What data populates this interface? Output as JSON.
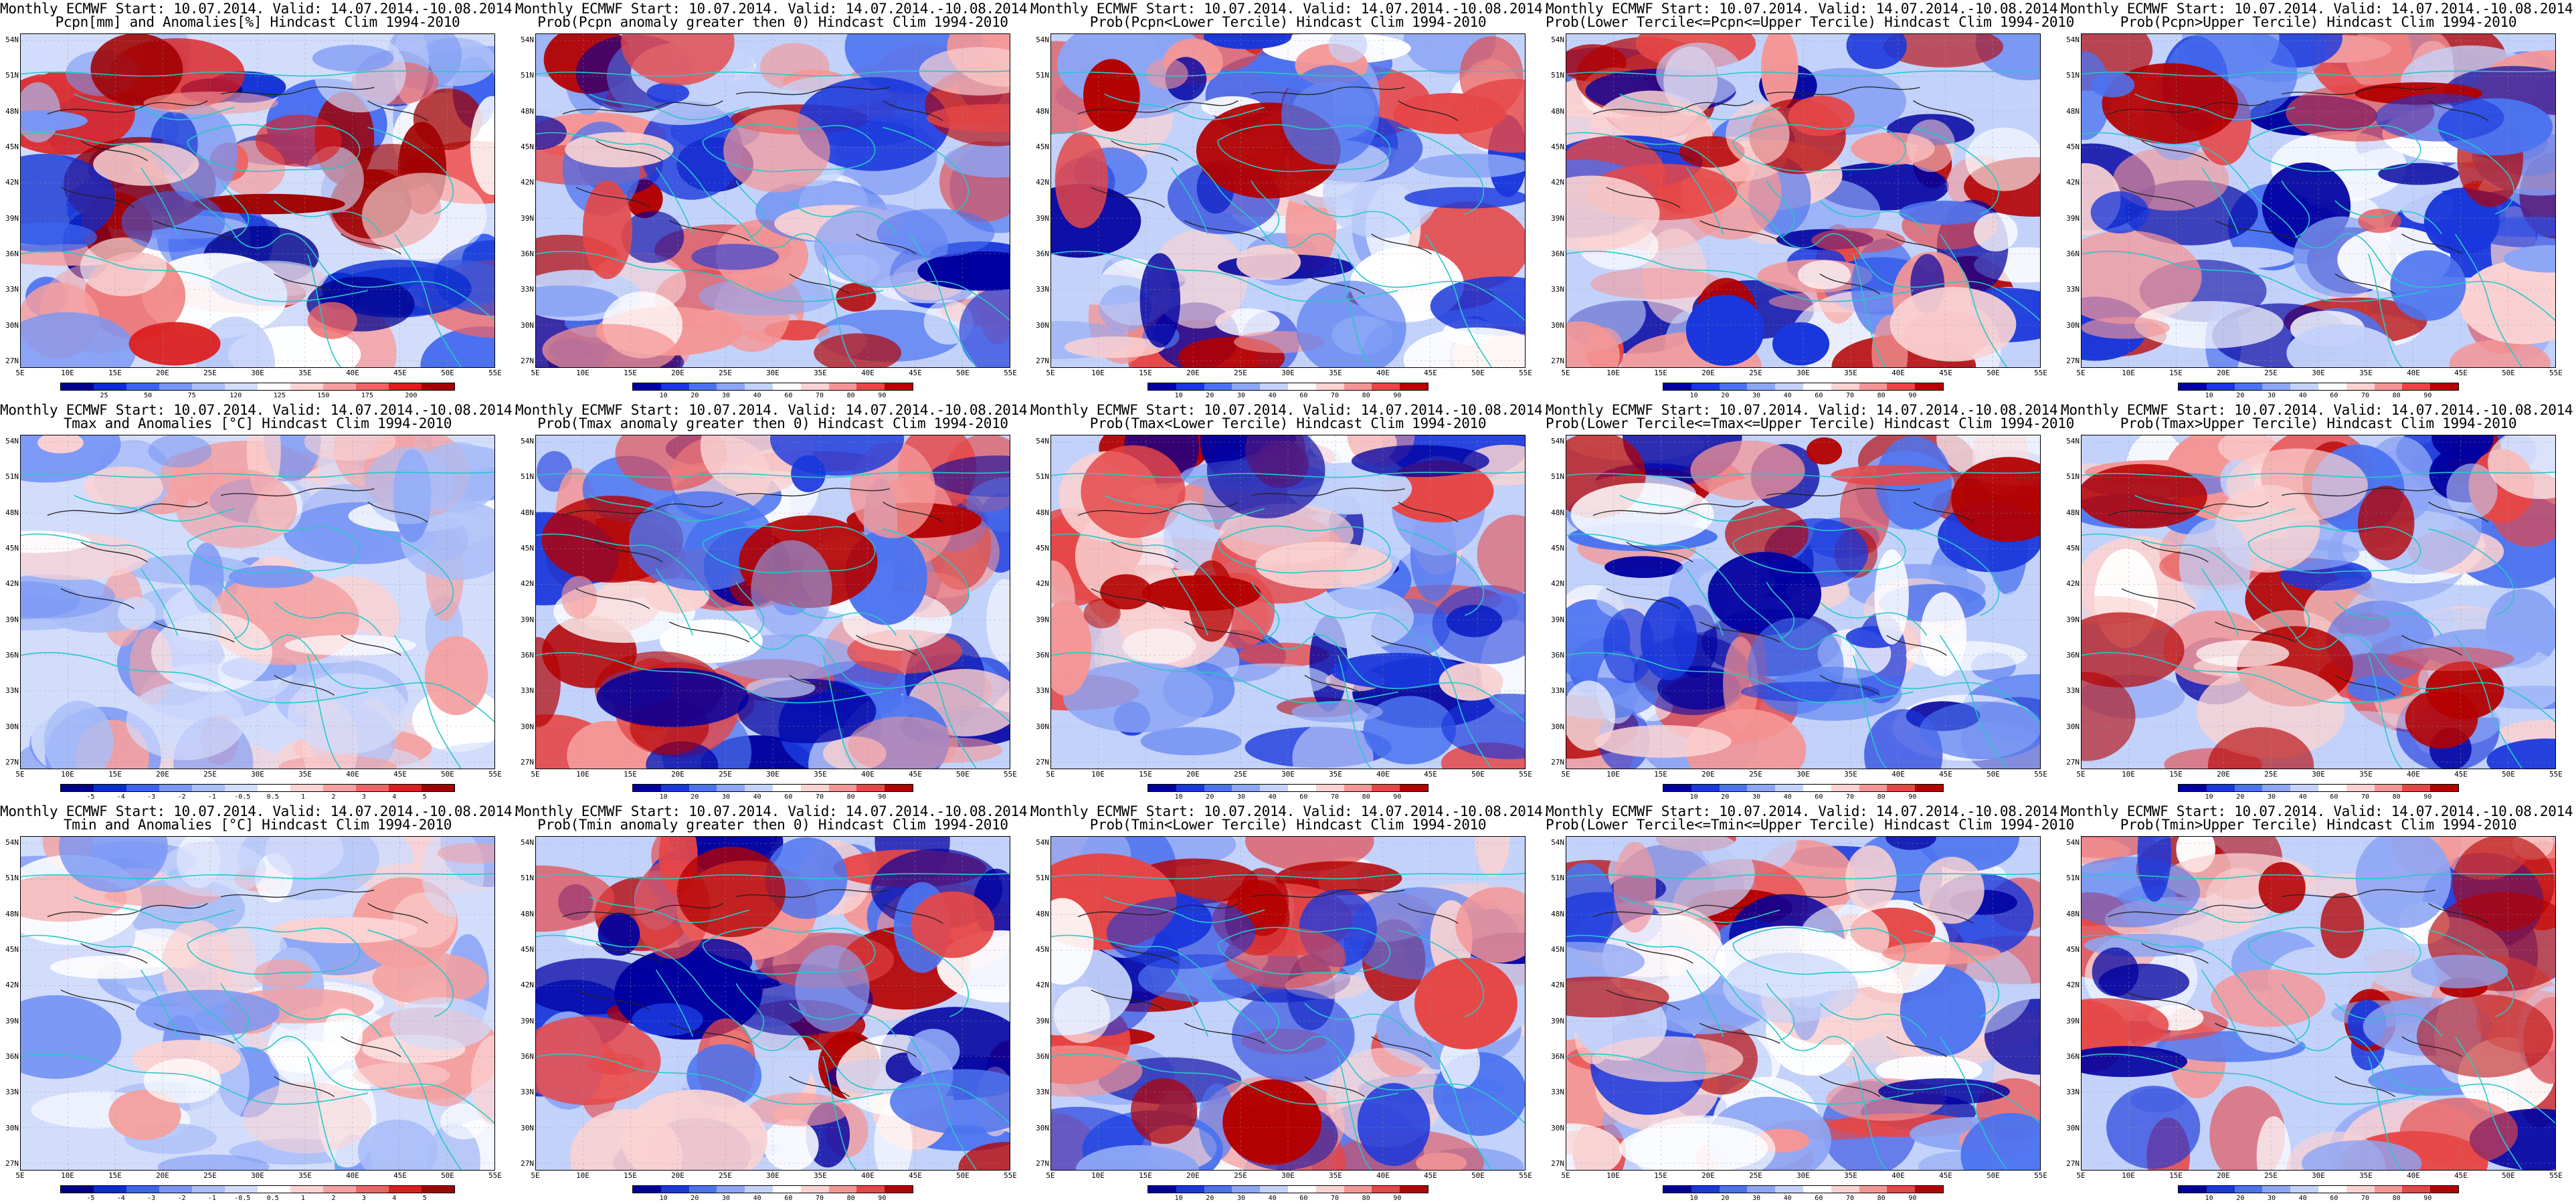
{
  "title_line1": "Monthly ECMWF Start: 10.07.2014. Valid: 14.07.2014.-10.08.2014.",
  "panels": [
    {
      "line2": "Pcpn[mm] and Anomalies[%] Hindcast Clim 1994-2010",
      "scheme": "bwr",
      "ticks": [
        "25",
        "50",
        "75",
        "120",
        "125",
        "150",
        "175",
        "200"
      ]
    },
    {
      "line2": "Prob(Pcpn anomaly greater then 0) Hindcast Clim 1994-2010",
      "scheme": "prob",
      "ticks": [
        "10",
        "20",
        "30",
        "40",
        "60",
        "70",
        "80",
        "90"
      ]
    },
    {
      "line2": "Prob(Pcpn<Lower Tercile) Hindcast Clim 1994-2010",
      "scheme": "prob",
      "ticks": [
        "10",
        "20",
        "30",
        "40",
        "60",
        "70",
        "80",
        "90"
      ]
    },
    {
      "line2": "Prob(Lower Tercile<=Pcpn<=Upper Tercile) Hindcast Clim 1994-2010",
      "scheme": "prob",
      "ticks": [
        "10",
        "20",
        "30",
        "40",
        "60",
        "70",
        "80",
        "90"
      ]
    },
    {
      "line2": "Prob(Pcpn>Upper Tercile) Hindcast Clim 1994-2010",
      "scheme": "prob",
      "ticks": [
        "10",
        "20",
        "30",
        "40",
        "60",
        "70",
        "80",
        "90"
      ]
    },
    {
      "line2": "Tmax and Anomalies [°C] Hindcast Clim 1994-2010",
      "scheme": "temp",
      "ticks": [
        "-5",
        "-4",
        "-3",
        "-2",
        "-1",
        "-0.5",
        "0.5",
        "1",
        "2",
        "3",
        "4",
        "5"
      ]
    },
    {
      "line2": "Prob(Tmax anomaly greater then 0) Hindcast Clim 1994-2010",
      "scheme": "prob",
      "ticks": [
        "10",
        "20",
        "30",
        "40",
        "60",
        "70",
        "80",
        "90"
      ]
    },
    {
      "line2": "Prob(Tmax<Lower Tercile) Hindcast Clim 1994-2010",
      "scheme": "prob",
      "ticks": [
        "10",
        "20",
        "30",
        "40",
        "60",
        "70",
        "80",
        "90"
      ]
    },
    {
      "line2": "Prob(Lower Tercile<=Tmax<=Upper Tercile) Hindcast Clim 1994-2010",
      "scheme": "prob",
      "ticks": [
        "10",
        "20",
        "30",
        "40",
        "60",
        "70",
        "80",
        "90"
      ]
    },
    {
      "line2": "Prob(Tmax>Upper Tercile) Hindcast Clim 1994-2010",
      "scheme": "prob",
      "ticks": [
        "10",
        "20",
        "30",
        "40",
        "60",
        "70",
        "80",
        "90"
      ]
    },
    {
      "line2": "Tmin and Anomalies [°C] Hindcast Clim 1994-2010",
      "scheme": "temp",
      "ticks": [
        "-5",
        "-4",
        "-3",
        "-2",
        "-1",
        "-0.5",
        "0.5",
        "1",
        "2",
        "3",
        "4",
        "5"
      ]
    },
    {
      "line2": "Prob(Tmin anomaly greater then 0) Hindcast Clim 1994-2010",
      "scheme": "prob",
      "ticks": [
        "10",
        "20",
        "30",
        "40",
        "60",
        "70",
        "80",
        "90"
      ]
    },
    {
      "line2": "Prob(Tmin<Lower Tercile) Hindcast Clim 1994-2010",
      "scheme": "prob",
      "ticks": [
        "10",
        "20",
        "30",
        "40",
        "60",
        "70",
        "80",
        "90"
      ]
    },
    {
      "line2": "Prob(Lower Tercile<=Tmin<=Upper Tercile) Hindcast Clim 1994-2010",
      "scheme": "prob",
      "ticks": [
        "10",
        "20",
        "30",
        "40",
        "60",
        "70",
        "80",
        "90"
      ]
    },
    {
      "line2": "Prob(Tmin>Upper Tercile) Hindcast Clim 1994-2010",
      "scheme": "prob",
      "ticks": [
        "10",
        "20",
        "30",
        "40",
        "60",
        "70",
        "80",
        "90"
      ]
    }
  ],
  "lat_labels": [
    "54N",
    "51N",
    "48N",
    "45N",
    "42N",
    "39N",
    "36N",
    "33N",
    "30N",
    "27N"
  ],
  "lon_labels": [
    "5E",
    "10E",
    "15E",
    "20E",
    "25E",
    "30E",
    "35E",
    "40E",
    "45E",
    "50E",
    "55E"
  ],
  "colors": {
    "coast": "#27c8c8",
    "contour": "#222222",
    "bwr": [
      "#00008c",
      "#0a2dd2",
      "#3c64f0",
      "#7896f5",
      "#aabef8",
      "#d2dcfb",
      "#ffffff",
      "#fcd2d2",
      "#f5a0a0",
      "#ee6464",
      "#dc1e1e",
      "#a00000"
    ],
    "prob": [
      "#0000a0",
      "#1937dc",
      "#4b73f0",
      "#8ca5f5",
      "#c3d2fa",
      "#ffffff",
      "#fad2d2",
      "#f59696",
      "#e64646",
      "#b40000"
    ]
  }
}
